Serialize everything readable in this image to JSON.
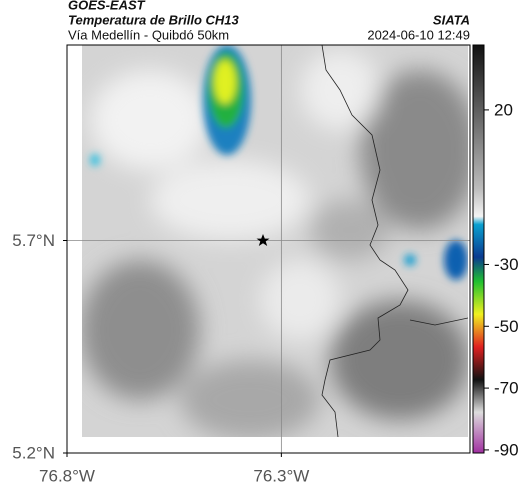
{
  "header": {
    "title": "GOES-EAST",
    "subtitle": "Temperatura de Brillo CH13",
    "route": "Vía Medellín - Quibdó 50km",
    "source": "SIATA",
    "datetime": "2024-06-10 12:49"
  },
  "map": {
    "xlim": [
      -76.8,
      -75.86
    ],
    "ylim": [
      5.2,
      6.16
    ],
    "xticks": [
      {
        "value": -76.8,
        "label": "76.8°W"
      },
      {
        "value": -76.3,
        "label": "76.3°W"
      }
    ],
    "yticks": [
      {
        "value": 5.2,
        "label": "5.2°N"
      },
      {
        "value": 5.7,
        "label": "5.7°N"
      }
    ],
    "grid_lines": {
      "x": -76.3,
      "y": 5.7
    }
  },
  "colorbar": {
    "lim": [
      -91,
      41
    ],
    "ticks": [
      20,
      -30,
      -50,
      -70,
      -90
    ]
  }
}
